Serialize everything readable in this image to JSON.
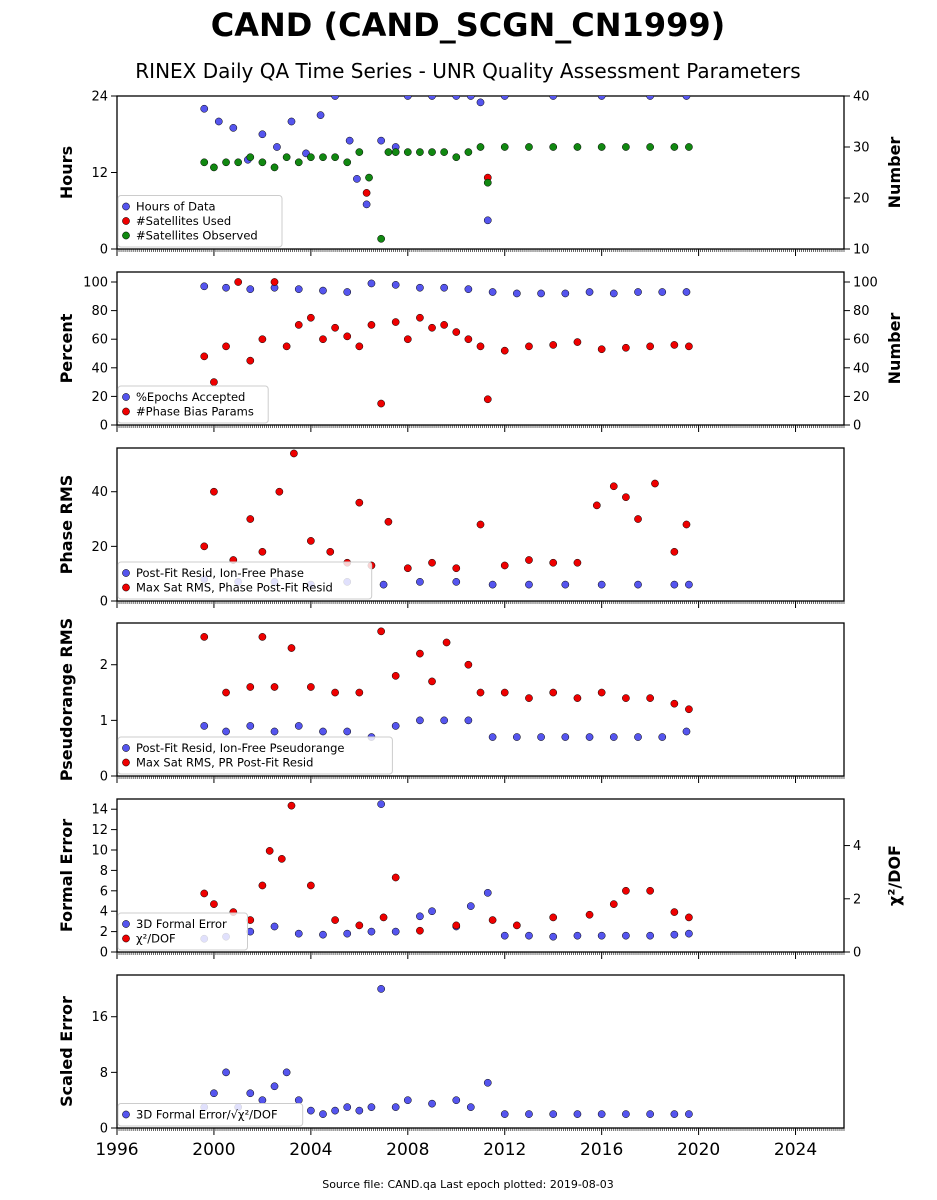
{
  "title": "CAND (CAND_SCGN_CN1999)",
  "subtitle": "RINEX Daily QA Time Series - UNR Quality Assessment Parameters",
  "footer": "Source file: CAND.qa Last epoch plotted: 2019-08-03",
  "colors": {
    "blue": "#5555ee",
    "red": "#ee0000",
    "green": "#118811"
  },
  "chart_data": [
    {
      "type": "scatter",
      "xlim": [
        1996,
        2026
      ],
      "xticks": [
        1996,
        2000,
        2004,
        2008,
        2012,
        2016,
        2020,
        2024
      ],
      "ylabel": "Hours",
      "ylim": [
        0,
        24
      ],
      "yticks": [
        0,
        12,
        24
      ],
      "y2label": "Number",
      "y2lim": [
        10,
        40
      ],
      "y2ticks": [
        10,
        20,
        30,
        40
      ],
      "legend": "lower-left",
      "series": [
        {
          "name": "Hours of Data",
          "axis": "left",
          "color": "blue",
          "x": [
            1999.6,
            2000.2,
            2000.8,
            2001.4,
            2002.0,
            2002.6,
            2003.2,
            2003.8,
            2004.4,
            2005.0,
            2005.6,
            2005.9,
            2006.3,
            2006.9,
            2007.5,
            2008.0,
            2009.0,
            2010.0,
            2010.6,
            2011.0,
            2011.3,
            2012.0,
            2014.0,
            2016.0,
            2018.0,
            2019.5
          ],
          "y": [
            22,
            20,
            19,
            14,
            18,
            16,
            20,
            15,
            21,
            24,
            17,
            11,
            7,
            17,
            16,
            24,
            24,
            24,
            24,
            23,
            4.5,
            24,
            24,
            24,
            24,
            24
          ]
        },
        {
          "name": "#Satellites Used",
          "axis": "right",
          "color": "red",
          "x": [
            2006.3,
            2011.3
          ],
          "y": [
            21,
            24
          ]
        },
        {
          "name": "#Satellites Observed",
          "axis": "right",
          "color": "green",
          "x": [
            1999.6,
            2000.0,
            2000.5,
            2001.0,
            2001.5,
            2002.0,
            2002.5,
            2003.0,
            2003.5,
            2004.0,
            2004.5,
            2005.0,
            2005.5,
            2006.0,
            2006.4,
            2006.9,
            2007.2,
            2007.5,
            2008.0,
            2008.5,
            2009.0,
            2009.5,
            2010.0,
            2010.5,
            2011.0,
            2011.3,
            2012.0,
            2013.0,
            2014.0,
            2015.0,
            2016.0,
            2017.0,
            2018.0,
            2019.0,
            2019.6
          ],
          "y": [
            27,
            26,
            27,
            27,
            28,
            27,
            26,
            28,
            27,
            28,
            28,
            28,
            27,
            29,
            24,
            12,
            29,
            29,
            29,
            29,
            29,
            29,
            28,
            29,
            30,
            23,
            30,
            30,
            30,
            30,
            30,
            30,
            30,
            30,
            30
          ]
        }
      ]
    },
    {
      "type": "scatter",
      "xlim": [
        1996,
        2026
      ],
      "xticks": [
        1996,
        2000,
        2004,
        2008,
        2012,
        2016,
        2020,
        2024
      ],
      "ylabel": "Percent",
      "ylim": [
        0,
        107
      ],
      "yticks": [
        0,
        20,
        40,
        60,
        80,
        100
      ],
      "y2label": "Number",
      "y2lim": [
        0,
        107
      ],
      "y2ticks": [
        0,
        20,
        40,
        60,
        80,
        100
      ],
      "legend": "lower-left",
      "series": [
        {
          "name": "%Epochs Accepted",
          "axis": "left",
          "color": "blue",
          "x": [
            1999.6,
            2000.5,
            2001.5,
            2002.5,
            2003.5,
            2004.5,
            2005.5,
            2006.5,
            2007.5,
            2008.5,
            2009.5,
            2010.5,
            2011.5,
            2012.5,
            2013.5,
            2014.5,
            2015.5,
            2016.5,
            2017.5,
            2018.5,
            2019.5
          ],
          "y": [
            97,
            96,
            95,
            96,
            95,
            94,
            93,
            99,
            98,
            96,
            96,
            95,
            93,
            92,
            92,
            92,
            93,
            92,
            93,
            93,
            93
          ]
        },
        {
          "name": "#Phase Bias Params",
          "axis": "right",
          "color": "red",
          "x": [
            1999.6,
            2000.0,
            2000.5,
            2001.0,
            2001.5,
            2002.0,
            2002.5,
            2003.0,
            2003.5,
            2004.0,
            2004.5,
            2005.0,
            2005.5,
            2006.0,
            2006.5,
            2006.9,
            2007.5,
            2008.0,
            2008.5,
            2009.0,
            2009.5,
            2010.0,
            2010.5,
            2011.0,
            2011.3,
            2012.0,
            2013.0,
            2014.0,
            2015.0,
            2016.0,
            2017.0,
            2018.0,
            2019.0,
            2019.6
          ],
          "y": [
            48,
            30,
            55,
            100,
            45,
            60,
            100,
            55,
            70,
            75,
            60,
            68,
            62,
            55,
            70,
            15,
            72,
            60,
            75,
            68,
            70,
            65,
            60,
            55,
            18,
            52,
            55,
            56,
            58,
            53,
            54,
            55,
            56,
            55
          ]
        }
      ]
    },
    {
      "type": "scatter",
      "xlim": [
        1996,
        2026
      ],
      "xticks": [
        1996,
        2000,
        2004,
        2008,
        2012,
        2016,
        2020,
        2024
      ],
      "ylabel": "Phase RMS",
      "ylim": [
        0,
        56
      ],
      "yticks": [
        0,
        20,
        40
      ],
      "legend": "lower-left",
      "series": [
        {
          "name": "Post-Fit Resid, Ion-Free Phase",
          "axis": "left",
          "color": "blue",
          "x": [
            1999.6,
            2001.0,
            2002.5,
            2004.0,
            2005.5,
            2007.0,
            2008.5,
            2010.0,
            2011.5,
            2013.0,
            2014.5,
            2016.0,
            2017.5,
            2019.0,
            2019.6
          ],
          "y": [
            8,
            7,
            7,
            6,
            7,
            6,
            7,
            7,
            6,
            6,
            6,
            6,
            6,
            6,
            6
          ]
        },
        {
          "name": "Max Sat RMS, Phase Post-Fit Resid",
          "axis": "left",
          "color": "red",
          "x": [
            1999.6,
            2000.0,
            2000.8,
            2001.5,
            2002.0,
            2002.7,
            2003.3,
            2004.0,
            2004.8,
            2005.5,
            2006.0,
            2006.5,
            2007.2,
            2008.0,
            2009.0,
            2010.0,
            2011.0,
            2012.0,
            2013.0,
            2014.0,
            2015.0,
            2015.8,
            2016.5,
            2017.0,
            2017.5,
            2018.2,
            2019.0,
            2019.5
          ],
          "y": [
            20,
            40,
            15,
            30,
            18,
            40,
            54,
            22,
            18,
            14,
            36,
            13,
            29,
            12,
            14,
            12,
            28,
            13,
            15,
            14,
            14,
            35,
            42,
            38,
            30,
            43,
            18,
            28
          ]
        }
      ]
    },
    {
      "type": "scatter",
      "xlim": [
        1996,
        2026
      ],
      "xticks": [
        1996,
        2000,
        2004,
        2008,
        2012,
        2016,
        2020,
        2024
      ],
      "ylabel": "Pseudorange RMS",
      "ylim": [
        0,
        2.75
      ],
      "yticks": [
        0,
        1,
        2
      ],
      "legend": "lower-left",
      "series": [
        {
          "name": "Post-Fit Resid, Ion-Free Pseudorange",
          "axis": "left",
          "color": "blue",
          "x": [
            1999.6,
            2000.5,
            2001.5,
            2002.5,
            2003.5,
            2004.5,
            2005.5,
            2006.5,
            2007.5,
            2008.5,
            2009.5,
            2010.5,
            2011.5,
            2012.5,
            2013.5,
            2014.5,
            2015.5,
            2016.5,
            2017.5,
            2018.5,
            2019.5
          ],
          "y": [
            0.9,
            0.8,
            0.9,
            0.8,
            0.9,
            0.8,
            0.8,
            0.7,
            0.9,
            1.0,
            1.0,
            1.0,
            0.7,
            0.7,
            0.7,
            0.7,
            0.7,
            0.7,
            0.7,
            0.7,
            0.8
          ]
        },
        {
          "name": "Max Sat RMS, PR Post-Fit Resid",
          "axis": "left",
          "color": "red",
          "x": [
            1999.6,
            2000.5,
            2001.5,
            2002.0,
            2002.5,
            2003.2,
            2004.0,
            2005.0,
            2006.0,
            2006.9,
            2007.5,
            2008.5,
            2009.0,
            2009.6,
            2010.5,
            2011.0,
            2012.0,
            2013.0,
            2014.0,
            2015.0,
            2016.0,
            2017.0,
            2018.0,
            2019.0,
            2019.6
          ],
          "y": [
            2.5,
            1.5,
            1.6,
            2.5,
            1.6,
            2.3,
            1.6,
            1.5,
            1.5,
            2.6,
            1.8,
            2.2,
            1.7,
            2.4,
            2.0,
            1.5,
            1.5,
            1.4,
            1.5,
            1.4,
            1.5,
            1.4,
            1.4,
            1.3,
            1.2
          ]
        }
      ]
    },
    {
      "type": "scatter",
      "xlim": [
        1996,
        2026
      ],
      "xticks": [
        1996,
        2000,
        2004,
        2008,
        2012,
        2016,
        2020,
        2024
      ],
      "ylabel": "Formal Error",
      "ylim": [
        0,
        15
      ],
      "yticks": [
        0,
        2,
        4,
        6,
        8,
        10,
        12,
        14
      ],
      "y2label": "χ²/DOF",
      "y2lim": [
        0,
        5.75
      ],
      "y2ticks": [
        0,
        2,
        4
      ],
      "legend": "lower-left",
      "series": [
        {
          "name": "3D Formal Error",
          "axis": "left",
          "color": "blue",
          "x": [
            1999.6,
            2000.5,
            2001.5,
            2002.5,
            2003.5,
            2004.5,
            2005.5,
            2006.5,
            2006.9,
            2007.5,
            2008.5,
            2009.0,
            2010.0,
            2010.6,
            2011.3,
            2012.0,
            2013.0,
            2014.0,
            2015.0,
            2016.0,
            2017.0,
            2018.0,
            2019.0,
            2019.6
          ],
          "y": [
            1.3,
            1.5,
            2.0,
            2.5,
            1.8,
            1.7,
            1.8,
            2.0,
            14.5,
            2.0,
            3.5,
            4.0,
            2.5,
            4.5,
            5.8,
            1.6,
            1.6,
            1.5,
            1.6,
            1.6,
            1.6,
            1.6,
            1.7,
            1.8
          ]
        },
        {
          "name": "χ²/DOF",
          "axis": "right",
          "color": "red",
          "x": [
            1999.6,
            2000.0,
            2000.8,
            2001.5,
            2002.0,
            2002.3,
            2002.8,
            2003.2,
            2004.0,
            2005.0,
            2006.0,
            2007.0,
            2007.5,
            2008.5,
            2010.0,
            2011.5,
            2012.5,
            2014.0,
            2015.5,
            2016.5,
            2017.0,
            2018.0,
            2019.0,
            2019.6
          ],
          "y": [
            2.2,
            1.8,
            1.5,
            1.2,
            2.5,
            3.8,
            3.5,
            5.5,
            2.5,
            1.2,
            1.0,
            1.3,
            2.8,
            0.8,
            1.0,
            1.2,
            1.0,
            1.3,
            1.4,
            1.8,
            2.3,
            2.3,
            1.5,
            1.3
          ]
        }
      ]
    },
    {
      "type": "scatter",
      "xlim": [
        1996,
        2026
      ],
      "xticks": [
        1996,
        2000,
        2004,
        2008,
        2012,
        2016,
        2020,
        2024
      ],
      "ylabel": "Scaled Error",
      "ylim": [
        0,
        22
      ],
      "yticks": [
        0,
        8,
        16
      ],
      "legend": "lower-left",
      "series": [
        {
          "name": "3D Formal Error/√χ²/DOF",
          "axis": "left",
          "color": "blue",
          "x": [
            1999.6,
            2000.0,
            2000.5,
            2001.0,
            2001.5,
            2002.0,
            2002.5,
            2003.0,
            2003.5,
            2004.0,
            2004.5,
            2005.0,
            2005.5,
            2006.0,
            2006.5,
            2006.9,
            2007.5,
            2008.0,
            2009.0,
            2010.0,
            2010.6,
            2011.3,
            2012.0,
            2013.0,
            2014.0,
            2015.0,
            2016.0,
            2017.0,
            2018.0,
            2019.0,
            2019.6
          ],
          "y": [
            3,
            5,
            8,
            3,
            5,
            4,
            6,
            8,
            4,
            2.5,
            2,
            2.5,
            3,
            2.5,
            3,
            20,
            3,
            4,
            3.5,
            4,
            3,
            6.5,
            2,
            2,
            2,
            2,
            2,
            2,
            2,
            2,
            2
          ]
        }
      ]
    }
  ]
}
